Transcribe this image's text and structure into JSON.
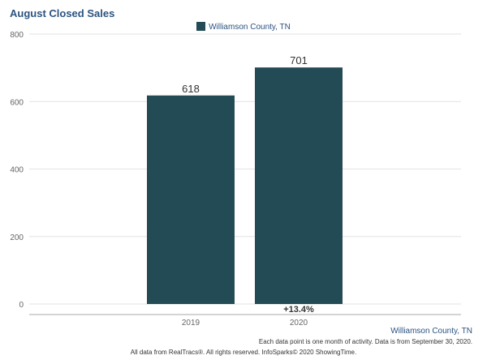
{
  "chart_data": {
    "type": "bar",
    "title": "August Closed Sales",
    "categories": [
      "2019",
      "2020"
    ],
    "series": [
      {
        "name": "Williamson County, TN",
        "values": [
          618,
          701
        ],
        "color": "#234b55"
      }
    ],
    "data_labels": [
      "618",
      "701"
    ],
    "ylim": [
      0,
      800
    ],
    "yticks": [
      0,
      200,
      400,
      600,
      800
    ],
    "grid": true,
    "legend_position": "top-center",
    "change_label": "+13.4%"
  },
  "source_label": "Williamson County, TN",
  "note": "Each data point is one month of activity. Data is from September 30, 2020.",
  "footer": "All data from RealTracs®. All rights reserved. InfoSparks© 2020 ShowingTime."
}
